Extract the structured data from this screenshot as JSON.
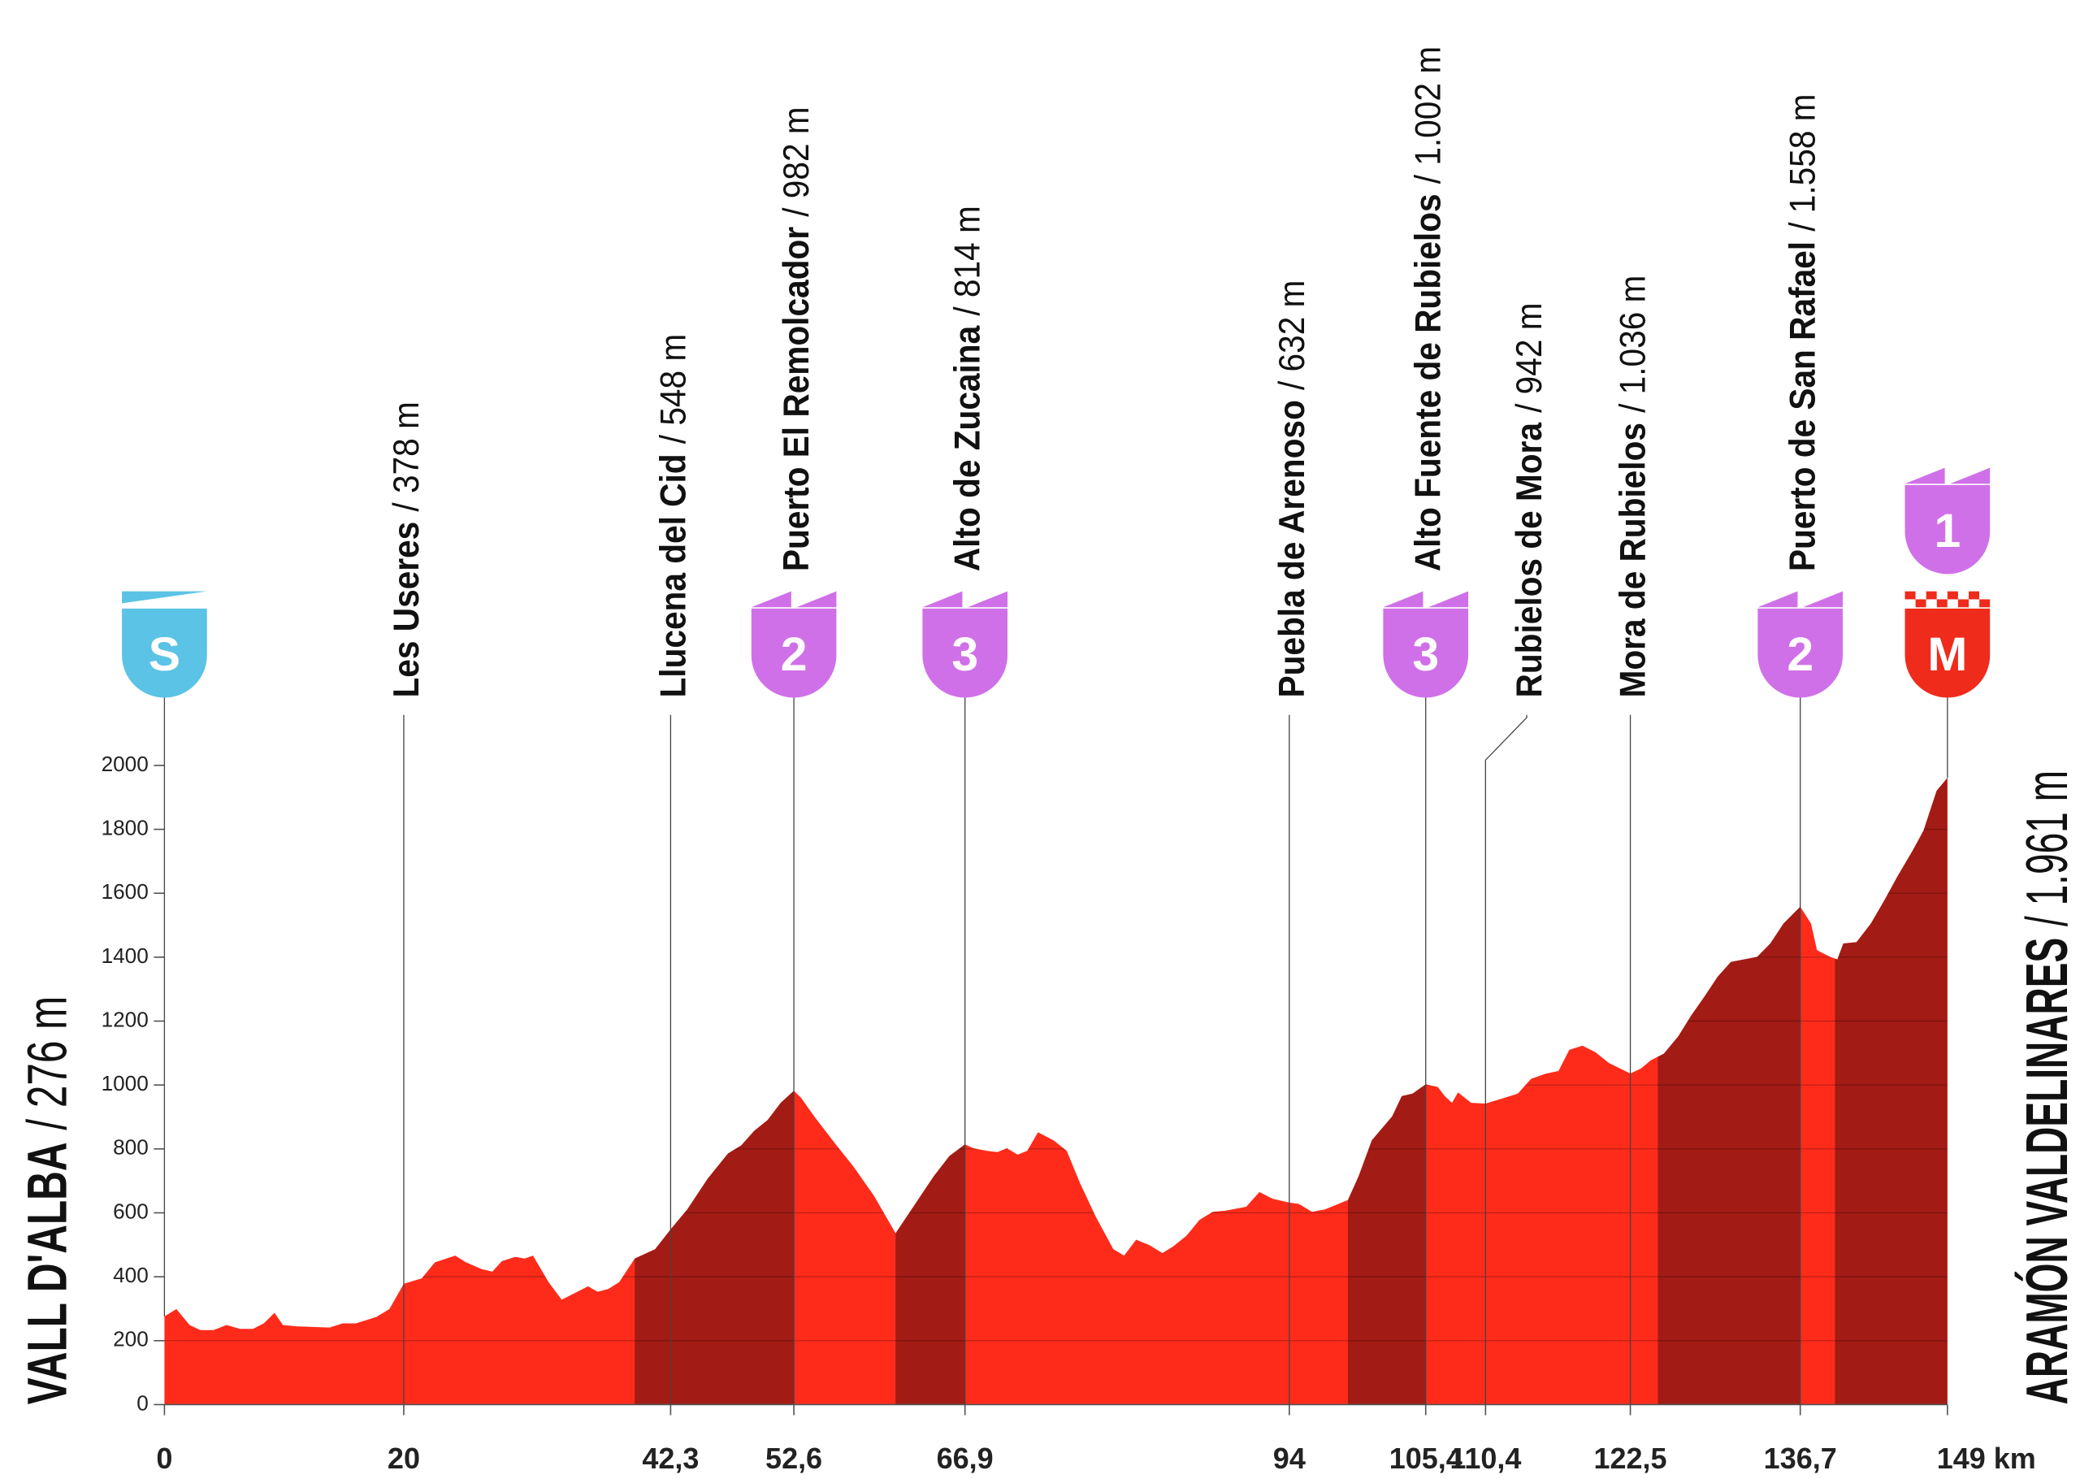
{
  "chart_data": {
    "type": "profile",
    "color": "#fe2b1b",
    "climb_color": "#a31b15",
    "category_color": "#d070e8",
    "start_color": "#5bc3e5",
    "finish_color": "#ef2b1c",
    "x": [
      0,
      1.0,
      2.1,
      3.0,
      4.1,
      5.2,
      6.3,
      7.4,
      8.3,
      9.2,
      9.9,
      11.0,
      13.8,
      14.9,
      16.0,
      17.7,
      18.8,
      20,
      21.5,
      22.6,
      24.3,
      25.2,
      26.5,
      27.4,
      28.2,
      29.3,
      30.1,
      30.8,
      32.1,
      33.2,
      34.3,
      35.4,
      36.2,
      37.1,
      38.0,
      39.3,
      41.0,
      42.3,
      43.7,
      45.4,
      47.1,
      48.2,
      49.3,
      50.4,
      51.5,
      52.6,
      53.2,
      54.3,
      56.0,
      57.6,
      59.3,
      61.1,
      62.6,
      64.3,
      65.6,
      66.9,
      67.6,
      68.7,
      69.6,
      70.4,
      71.3,
      72.1,
      73.0,
      74.3,
      75.4,
      76.5,
      77.8,
      79.3,
      80.2,
      81.2,
      82.3,
      83.4,
      84.3,
      85.4,
      86.5,
      87.6,
      88.7,
      90.4,
      91.5,
      92.6,
      94,
      94.8,
      95.9,
      97.0,
      98.1,
      98.9,
      99.8,
      100.9,
      102.6,
      103.4,
      104.3,
      105.4,
      106.4,
      107.0,
      107.6,
      108.1,
      109.2,
      110.4,
      112.0,
      113.1,
      114.2,
      115.4,
      116.5,
      117.4,
      118.5,
      119.6,
      120.7,
      122.5,
      123.4,
      124.2,
      125.3,
      126.5,
      127.6,
      128.7,
      129.8,
      130.9,
      132.0,
      133.1,
      134.2,
      135.3,
      136.7,
      137.6,
      138.1,
      139.2,
      139.8,
      140.3,
      141.4,
      142.6,
      143.7,
      144.8,
      146.1,
      147.0,
      148.1,
      149
    ],
    "values": [
      276,
      299,
      249,
      233,
      233,
      249,
      237,
      237,
      254,
      287,
      249,
      245,
      241,
      254,
      254,
      274,
      299,
      378,
      395,
      445,
      466,
      445,
      424,
      416,
      449,
      462,
      457,
      466,
      383,
      328,
      349,
      370,
      353,
      362,
      383,
      457,
      486,
      548,
      611,
      707,
      786,
      811,
      857,
      890,
      944,
      982,
      960,
      902,
      819,
      744,
      653,
      536,
      620,
      715,
      778,
      814,
      802,
      794,
      790,
      802,
      782,
      794,
      852,
      827,
      794,
      694,
      590,
      486,
      466,
      516,
      499,
      474,
      495,
      528,
      578,
      603,
      607,
      619,
      665,
      644,
      632,
      628,
      603,
      611,
      628,
      640,
      715,
      827,
      902,
      965,
      973,
      1002,
      994,
      965,
      944,
      977,
      944,
      942,
      960,
      973,
      1019,
      1035,
      1044,
      1110,
      1123,
      1102,
      1069,
      1036,
      1052,
      1077,
      1098,
      1152,
      1218,
      1277,
      1339,
      1385,
      1393,
      1401,
      1443,
      1505,
      1558,
      1505,
      1422,
      1401,
      1393,
      1443,
      1447,
      1505,
      1576,
      1651,
      1734,
      1796,
      1921,
      1961
    ],
    "climbs": [
      [
        39.3,
        52.6
      ],
      [
        61.1,
        66.9
      ],
      [
        98.9,
        105.4
      ],
      [
        124.8,
        136.7
      ],
      [
        139.6,
        149
      ]
    ],
    "xlim": [
      0,
      149
    ],
    "ylim": [
      0,
      2000
    ],
    "xticks": [
      0,
      20,
      {
        "value": 42.3,
        "label": "42,3"
      },
      {
        "value": 52.6,
        "label": "52,6"
      },
      {
        "value": 66.9,
        "label": "66,9"
      },
      94,
      {
        "value": 105.4,
        "label": "105,4"
      },
      {
        "value": 110.4,
        "label": "110,4"
      },
      {
        "value": 122.5,
        "label": "122,5"
      },
      {
        "value": 136.7,
        "label": "136,7"
      },
      {
        "value": 149,
        "label": "149 km"
      }
    ],
    "yticks": [
      0,
      200,
      400,
      600,
      800,
      1000,
      1200,
      1400,
      1600,
      1800,
      2000
    ],
    "grid": true,
    "start": {
      "name": "VALL D'ALBA",
      "elevation": "/ 276 m",
      "badge": "S"
    },
    "finish": {
      "name": "ARAMÓN VALDELINARES",
      "elevation": "/ 1.961 m",
      "badges": [
        "1",
        "M"
      ]
    },
    "waypoints": [
      {
        "km": 20,
        "name": "Les Useres",
        "elevation": "/ 378 m"
      },
      {
        "km": 42.3,
        "name": "Llucena del Cid",
        "elevation": "/ 548 m"
      },
      {
        "km": 52.6,
        "name": "Puerto El Remolcador",
        "elevation": "/ 982 m",
        "badge": "2"
      },
      {
        "km": 66.9,
        "name": "Alto de Zucaina",
        "elevation": "/ 814 m",
        "badge": "3"
      },
      {
        "km": 94,
        "name": "Puebla de Arenoso",
        "elevation": "/ 632 m"
      },
      {
        "km": 105.4,
        "name": "Alto Fuente de Rubielos",
        "elevation": "/ 1.002 m",
        "badge": "3"
      },
      {
        "km": 110.4,
        "name": "Rubielos de Mora",
        "elevation": "/ 942 m"
      },
      {
        "km": 122.5,
        "name": "Mora de Rubielos",
        "elevation": "/ 1.036 m"
      },
      {
        "km": 136.7,
        "name": "Puerto de San Rafael",
        "elevation": "/ 1.558 m",
        "badge": "2"
      }
    ]
  }
}
